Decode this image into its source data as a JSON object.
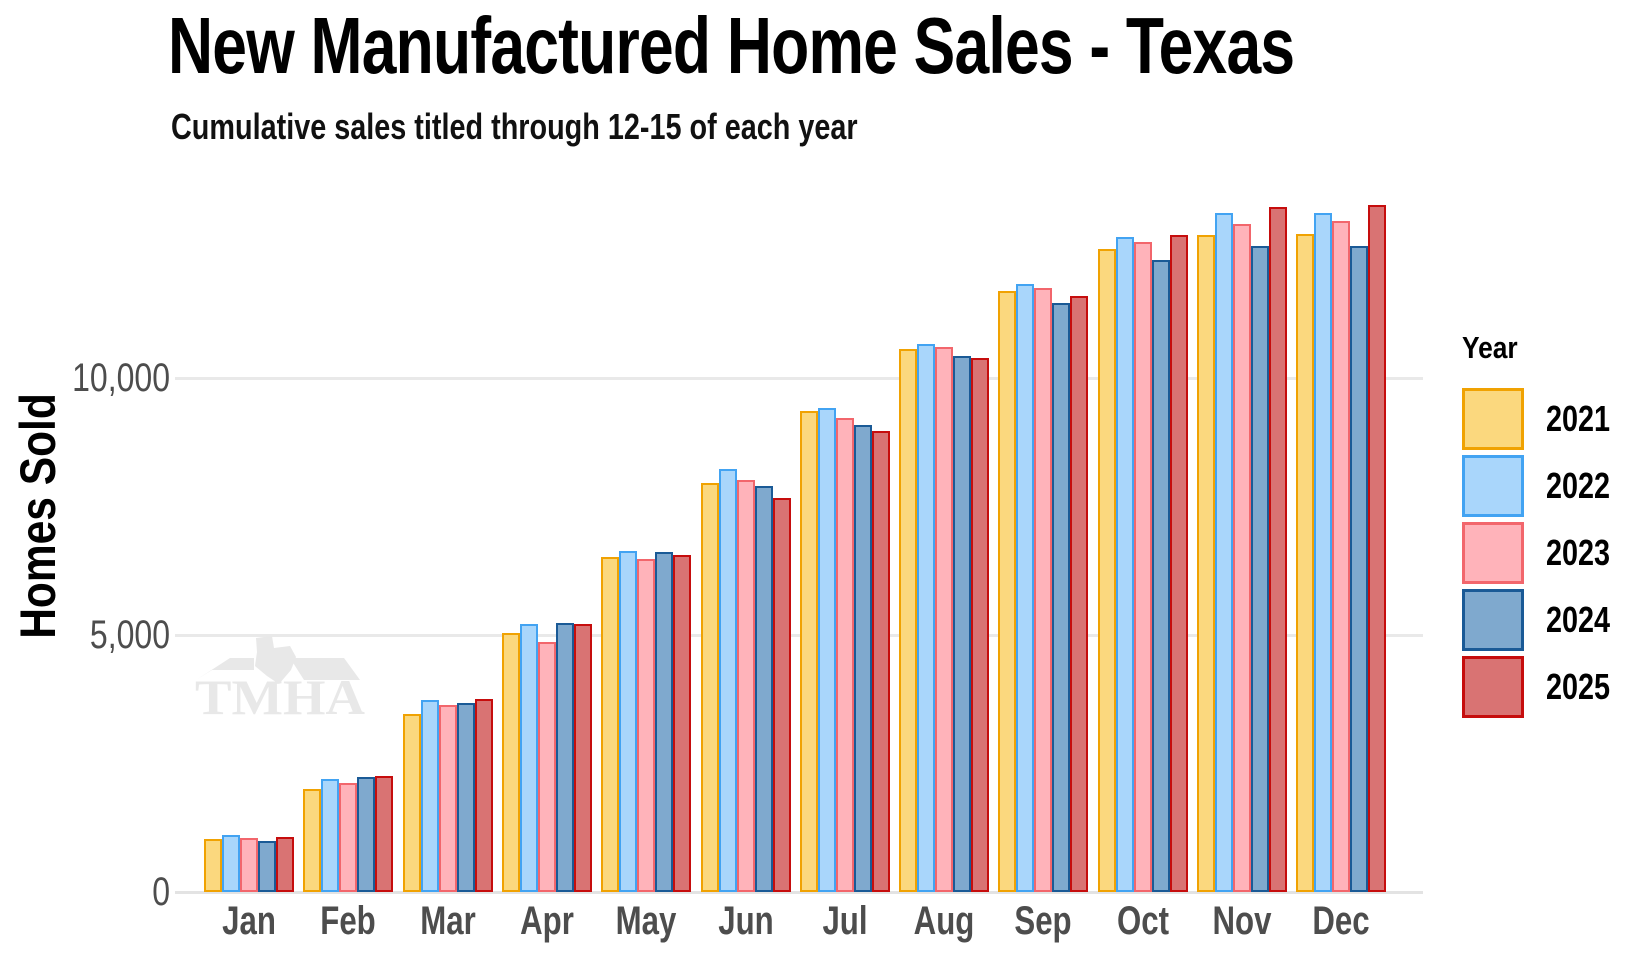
{
  "title": "New Manufactured Home Sales - Texas",
  "subtitle": "Cumulative sales titled through 12-15 of each year",
  "watermark_text": "TMHA",
  "chart_data": {
    "type": "bar",
    "grouped": true,
    "title": "New Manufactured Home Sales - Texas",
    "subtitle": "Cumulative sales titled through 12-15 of each year",
    "xlabel": "",
    "ylabel": "Homes Sold",
    "categories": [
      "Jan",
      "Feb",
      "Mar",
      "Apr",
      "May",
      "Jun",
      "Jul",
      "Aug",
      "Sep",
      "Oct",
      "Nov",
      "Dec"
    ],
    "series": [
      {
        "name": "2021",
        "fill": "#FBD87E",
        "border": "#F0A202",
        "values": [
          1040,
          2000,
          3470,
          5030,
          6510,
          7950,
          9350,
          10560,
          11700,
          12510,
          12780,
          12800
        ]
      },
      {
        "name": "2022",
        "fill": "#A9D6FB",
        "border": "#42A3F2",
        "values": [
          1100,
          2200,
          3730,
          5220,
          6640,
          8230,
          9410,
          10670,
          11830,
          12750,
          13210,
          13220
        ]
      },
      {
        "name": "2023",
        "fill": "#FFB3BA",
        "border": "#F2666C",
        "values": [
          1060,
          2130,
          3640,
          4860,
          6470,
          8010,
          9230,
          10610,
          11760,
          12640,
          13000,
          13050
        ]
      },
      {
        "name": "2024",
        "fill": "#7FA9CE",
        "border": "#1A5A96",
        "values": [
          990,
          2240,
          3680,
          5240,
          6620,
          7900,
          9080,
          10420,
          11450,
          12300,
          12560,
          12570
        ]
      },
      {
        "name": "2025",
        "fill": "#D97373",
        "border": "#C60D0D",
        "values": [
          1080,
          2260,
          3760,
          5220,
          6560,
          7660,
          8960,
          10380,
          11590,
          12780,
          13320,
          13370
        ]
      }
    ],
    "yticks": [
      0,
      5000,
      10000
    ],
    "ytick_labels": [
      "0",
      "5,000",
      "10,000"
    ],
    "ylim": [
      0,
      13950
    ],
    "grid": "horizontal",
    "legend_title": "Year",
    "legend_position": "right",
    "background": "#ffffff",
    "gridline_color": "#e9e9e9"
  }
}
